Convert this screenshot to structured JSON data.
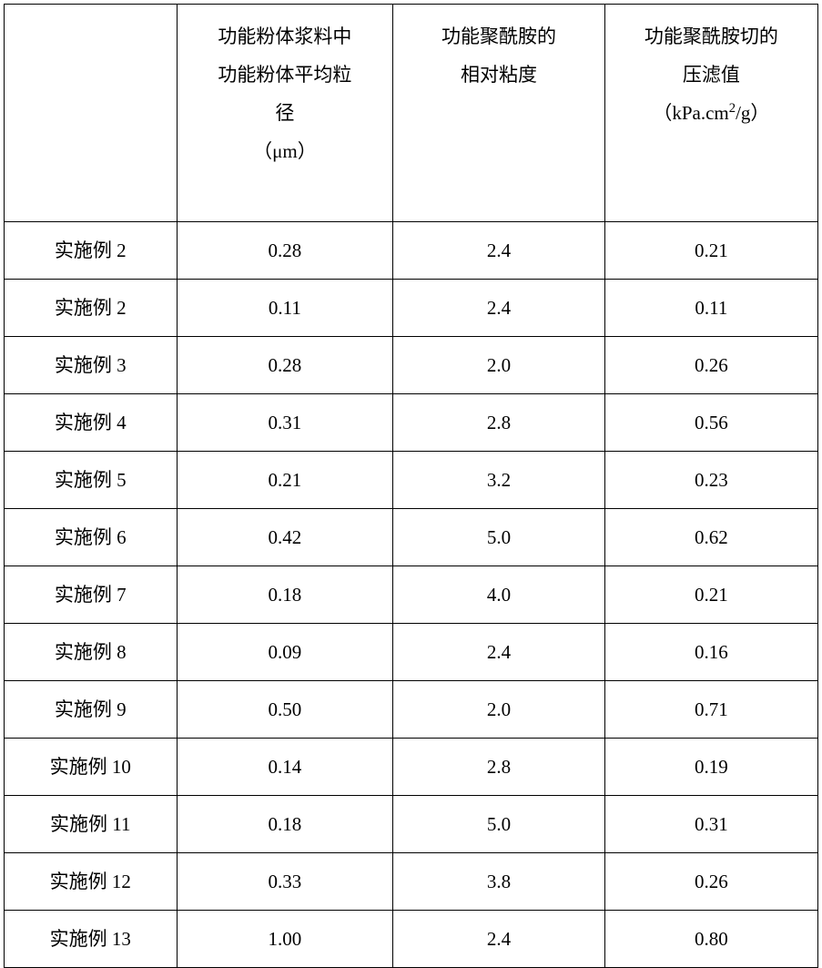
{
  "table": {
    "columns": [
      {
        "lines": [
          ""
        ]
      },
      {
        "lines": [
          "功能粉体浆料中",
          "功能粉体平均粒",
          "径",
          "（μm）"
        ]
      },
      {
        "lines": [
          "功能聚酰胺的",
          "相对粘度"
        ]
      },
      {
        "lines_html": [
          "功能聚酰胺切的",
          "压滤值",
          "（kPa.cm<sup>2</sup>/g）"
        ]
      }
    ],
    "rows": [
      [
        "实施例 2",
        "0.28",
        "2.4",
        "0.21"
      ],
      [
        "实施例 2",
        "0.11",
        "2.4",
        "0.11"
      ],
      [
        "实施例 3",
        "0.28",
        "2.0",
        "0.26"
      ],
      [
        "实施例 4",
        "0.31",
        "2.8",
        "0.56"
      ],
      [
        "实施例 5",
        "0.21",
        "3.2",
        "0.23"
      ],
      [
        "实施例 6",
        "0.42",
        "5.0",
        "0.62"
      ],
      [
        "实施例 7",
        "0.18",
        "4.0",
        "0.21"
      ],
      [
        "实施例 8",
        "0.09",
        "2.4",
        "0.16"
      ],
      [
        "实施例 9",
        "0.50",
        "2.0",
        "0.71"
      ],
      [
        "实施例 10",
        "0.14",
        "2.8",
        "0.19"
      ],
      [
        "实施例 11",
        "0.18",
        "5.0",
        "0.31"
      ],
      [
        "实施例 12",
        "0.33",
        "3.8",
        "0.26"
      ],
      [
        "实施例 13",
        "1.00",
        "2.4",
        "0.80"
      ]
    ],
    "border_color": "#000000",
    "background_color": "#ffffff",
    "text_color": "#000000",
    "font_size_pt": 16,
    "font_family": "SimSun"
  }
}
